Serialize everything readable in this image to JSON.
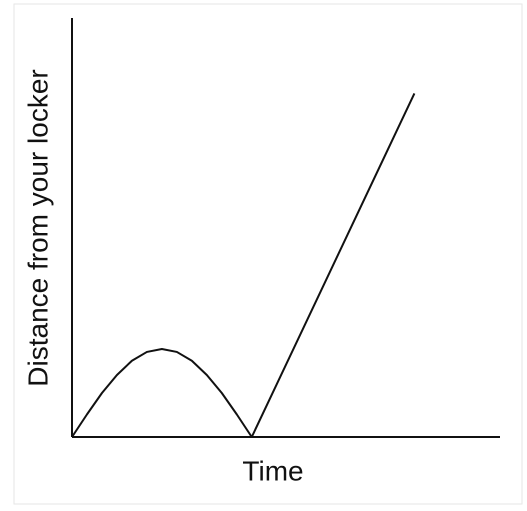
{
  "chart_data": {
    "type": "line",
    "xlabel": "Time",
    "ylabel": "Distance from your locker",
    "xlim": [
      0,
      10
    ],
    "ylim": [
      0,
      10
    ],
    "grid": false,
    "series": [
      {
        "color": "#111111",
        "x": [
          0,
          0.35,
          0.7,
          1.05,
          1.4,
          1.75,
          2.1,
          2.45,
          2.8,
          3.15,
          3.5,
          3.85,
          4.2,
          8.0
        ],
        "values": [
          0,
          0.54,
          1.05,
          1.48,
          1.82,
          2.03,
          2.1,
          2.03,
          1.82,
          1.48,
          1.05,
          0.54,
          0,
          8.2
        ]
      }
    ]
  }
}
